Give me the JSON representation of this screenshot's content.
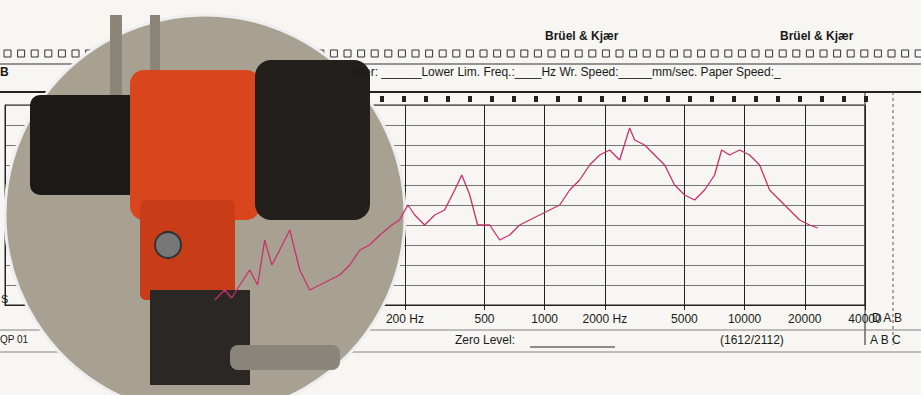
{
  "chart_data": {
    "type": "line",
    "annotations": [
      "Brüel & Kjær",
      "Brüel & Kjær",
      "B",
      "tifier: ______Lower Lim. Freq.:____Hz Wr. Speed:_____mm/sec. Paper Speed:_",
      "Zero Level:",
      "(1612/2112)",
      "D A B",
      "A B C",
      "QP 01",
      "S"
    ],
    "x": [
      22.4,
      25.1,
      27.2,
      29.9,
      33.5,
      36.7,
      39.8,
      43.2,
      47.3,
      53.1,
      59.6,
      66.8,
      75.0,
      84.1,
      94.4,
      106,
      119,
      133,
      150,
      172,
      188,
      207,
      224,
      251,
      282,
      316,
      355,
      385,
      422,
      462,
      531,
      596,
      668,
      750,
      841,
      944,
      1059,
      1189,
      1334,
      1496,
      1679,
      1884,
      2113,
      2371,
      2661,
      2818,
      3162,
      3548,
      3981,
      4467,
      5012,
      5623,
      6310,
      7079,
      7674,
      8414,
      9441,
      10593,
      11885,
      13335,
      14962,
      16788,
      18836,
      21135,
      23174
    ],
    "values": [
      1.25,
      3.75,
      1.75,
      5,
      8.75,
      5,
      16.25,
      10,
      13.75,
      18.75,
      8.75,
      3.75,
      5,
      6.25,
      7.5,
      10,
      13.75,
      15,
      17.5,
      20,
      21.25,
      25,
      22.5,
      20,
      22.5,
      23.75,
      28.75,
      32.5,
      27.5,
      20,
      20,
      16.25,
      17.5,
      20,
      21.25,
      22.5,
      23.75,
      25,
      28.75,
      31.25,
      35,
      37.5,
      38.75,
      36.25,
      44.25,
      41.25,
      40,
      37.5,
      35,
      30,
      27.5,
      26.25,
      28.75,
      32.5,
      38.75,
      37.5,
      38.75,
      37.5,
      35,
      28.75,
      26.25,
      23.75,
      21.25,
      20,
      19.25
    ],
    "color": "#c8306e",
    "xlim": [
      2,
      40000
    ],
    "xticks": [
      {
        "value": 200,
        "label": "200 Hz"
      },
      500,
      1000,
      {
        "value": 2000,
        "label": "2000 Hz"
      },
      5000,
      10000,
      20000,
      40000
    ],
    "ylim": [
      0,
      50
    ],
    "yticks": [
      0,
      5,
      10,
      15,
      20,
      25,
      30,
      35,
      40,
      45,
      50
    ],
    "log": "x",
    "grid": true,
    "tick_labels": "x",
    "marker": "none",
    "line_style": "solid"
  }
}
